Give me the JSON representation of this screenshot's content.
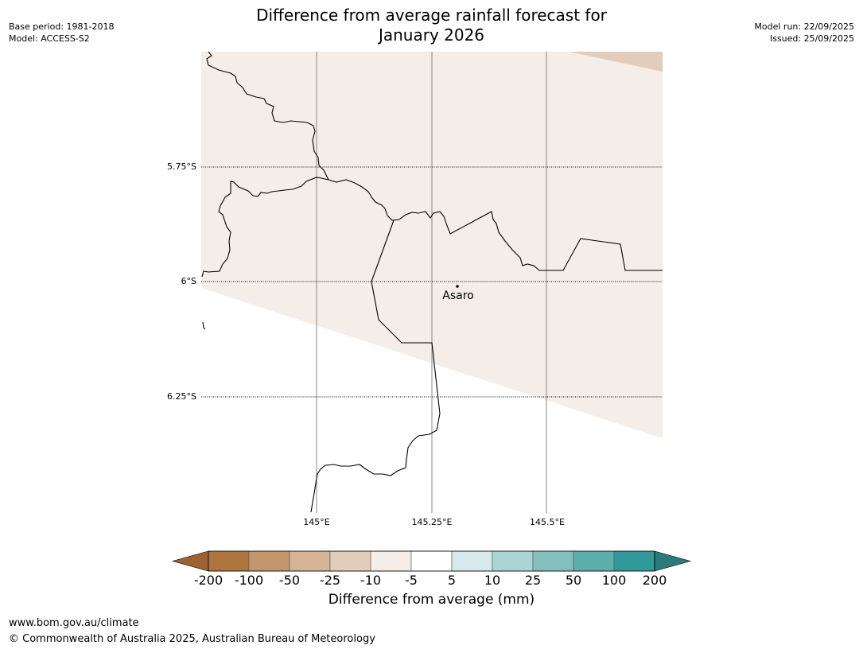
{
  "header": {
    "title_line1": "Difference from average rainfall forecast for",
    "title_line2": "January 2026",
    "base_period": "Base period: 1981-2018",
    "model": "Model: ACCESS-S2",
    "model_run": "Model run: 22/09/2025",
    "issued": "Issued: 25/09/2025"
  },
  "map": {
    "lat_labels": [
      "5.75°S",
      "6°S",
      "6.25°S"
    ],
    "lon_labels": [
      "145°E",
      "145.25°E",
      "145.5°E"
    ],
    "place": "Asaro",
    "fill_category": "-5 to -10",
    "fill_colors": {
      "slight_dry": "#f4ede8",
      "moderate_dry": "#e2cdbc",
      "no_data": "#ffffff"
    }
  },
  "colorbar": {
    "label": "Difference from average (mm)",
    "ticks": [
      "-200",
      "-100",
      "-50",
      "-25",
      "-10",
      "-5",
      "5",
      "10",
      "25",
      "50",
      "100",
      "200"
    ],
    "colors": [
      "#9c6331",
      "#ae753e",
      "#c4966c",
      "#d4b495",
      "#e2cdbc",
      "#f4ede8",
      "#ffffff",
      "#d7e9ea",
      "#aad5d4",
      "#83c0bd",
      "#5aaeac",
      "#32999a",
      "#2c7a79"
    ]
  },
  "footer": {
    "url": "www.bom.gov.au/climate",
    "copyright": "© Commonwealth of Australia 2025, Australian Bureau of Meteorology"
  }
}
